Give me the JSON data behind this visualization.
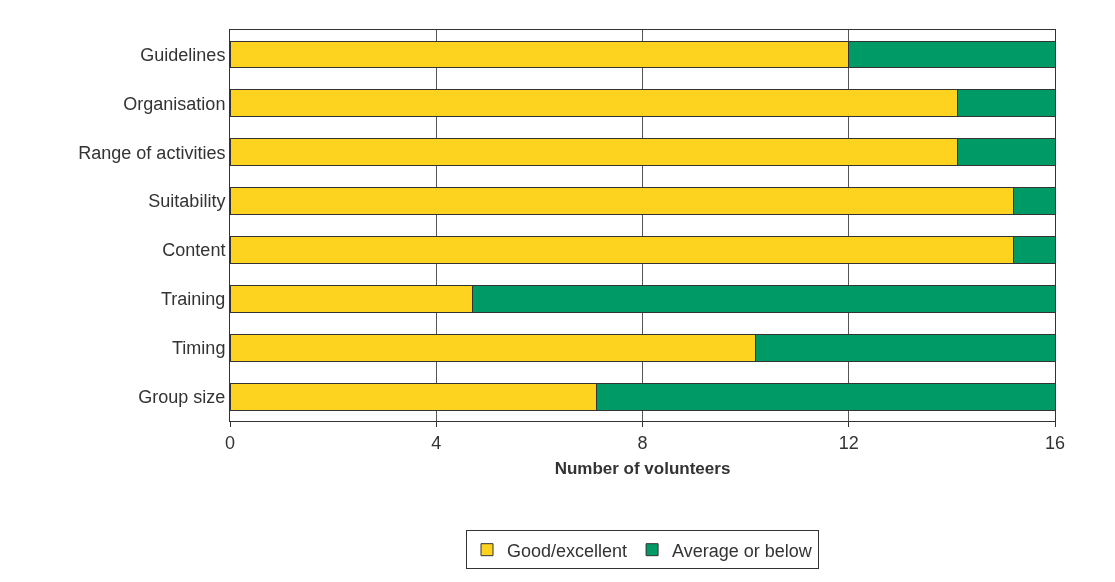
{
  "chart_data": {
    "type": "bar",
    "orientation": "horizontal",
    "stacked": true,
    "categories": [
      "Guidelines",
      "Organisation",
      "Range of activities",
      "Suitability",
      "Content",
      "Training",
      "Timing",
      "Group size"
    ],
    "series": [
      {
        "name": "Good/excellent",
        "color": "#fdd320",
        "values": [
          12,
          14.1,
          14.1,
          15.2,
          15.2,
          4.7,
          10.2,
          7.1
        ]
      },
      {
        "name": "Average or below",
        "color": "#009a66",
        "values": [
          4,
          1.9,
          1.9,
          0.8,
          0.8,
          11.3,
          5.8,
          8.9
        ]
      }
    ],
    "xlabel": "Number of volunteers",
    "xlim": [
      0,
      16
    ],
    "xticks": [
      0,
      4,
      8,
      12,
      16
    ],
    "grid": "x",
    "legend": "bottom"
  }
}
